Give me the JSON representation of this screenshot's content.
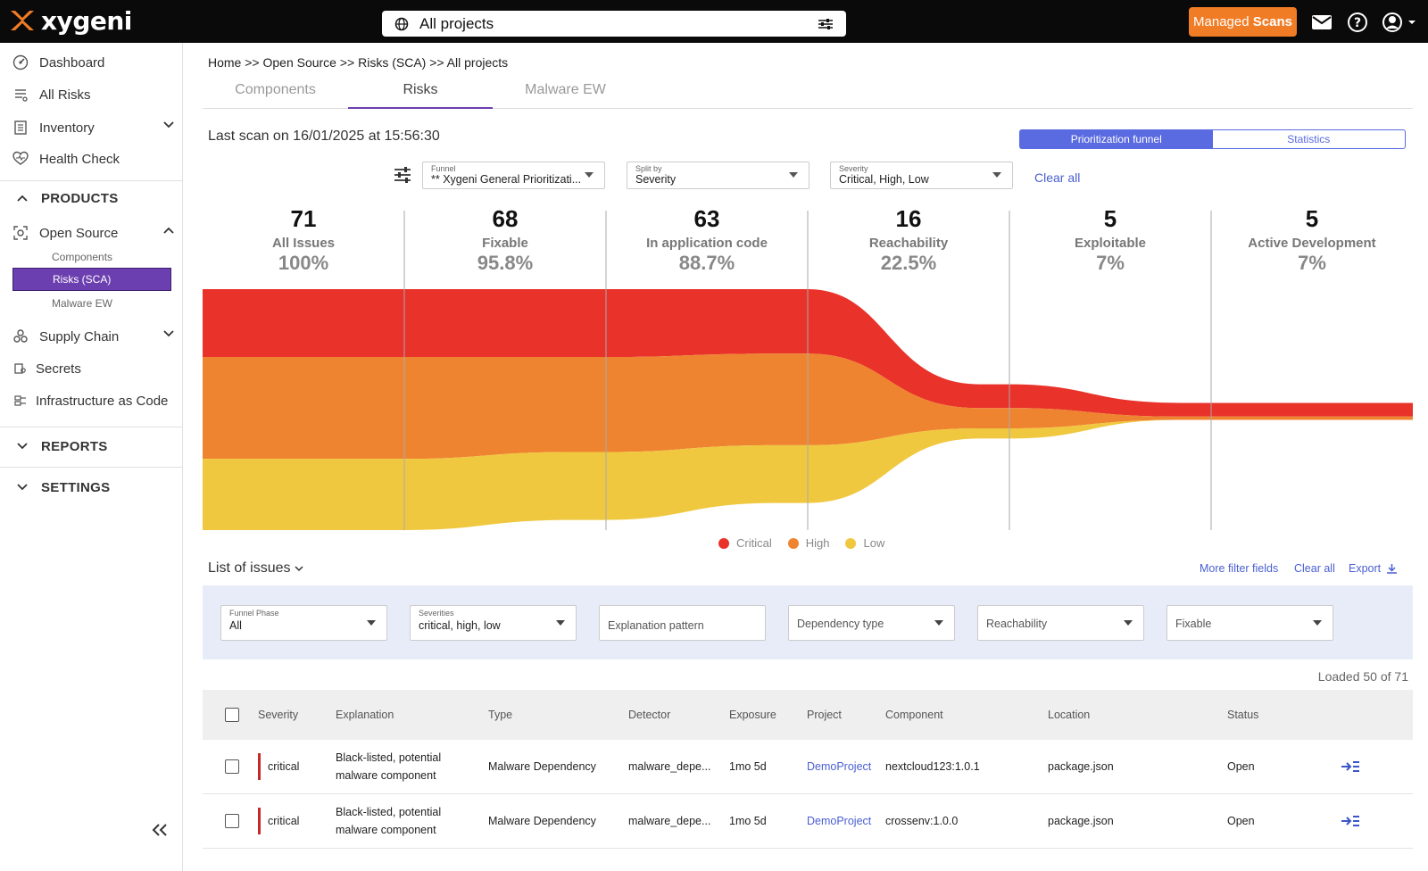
{
  "topbar": {
    "logo_text": "xygeni",
    "search_text": "All projects",
    "managed_btn_prefix": "Managed",
    "managed_btn_suffix": "Scans"
  },
  "sidebar": {
    "items": [
      {
        "label": "Dashboard",
        "icon": "dashboard-icon"
      },
      {
        "label": "All Risks",
        "icon": "risks-icon"
      },
      {
        "label": "Inventory",
        "icon": "inventory-icon"
      },
      {
        "label": "Health Check",
        "icon": "health-icon"
      }
    ],
    "products_header": "PRODUCTS",
    "open_source": "Open Source",
    "open_source_sub": [
      "Components",
      "Risks (SCA)",
      "Malware EW"
    ],
    "more_items": [
      {
        "label": "Supply Chain"
      },
      {
        "label": "Secrets"
      },
      {
        "label": "Infrastructure as Code"
      }
    ],
    "reports_header": "REPORTS",
    "settings_header": "SETTINGS"
  },
  "main": {
    "breadcrumb": "Home >> Open Source >> Risks (SCA) >> All projects",
    "tabs": [
      "Components",
      "Risks",
      "Malware EW"
    ],
    "last_scan": "Last scan on 16/01/2025 at 15:56:30",
    "view_toggle": [
      "Prioritization funnel",
      "Statistics"
    ],
    "filters": {
      "funnel_label": "Funnel",
      "funnel_value": "** Xygeni General Prioritizati...",
      "split_label": "Split by",
      "split_value": "Severity",
      "severity_label": "Severity",
      "severity_value": "Critical, High, Low",
      "clear_all": "Clear all"
    }
  },
  "chart_data": {
    "type": "area",
    "title": "",
    "stages": [
      {
        "count": "71",
        "name": "All Issues",
        "pct": "100%"
      },
      {
        "count": "68",
        "name": "Fixable",
        "pct": "95.8%"
      },
      {
        "count": "63",
        "name": "In application code",
        "pct": "88.7%"
      },
      {
        "count": "16",
        "name": "Reachability",
        "pct": "22.5%"
      },
      {
        "count": "5",
        "name": "Exploitable",
        "pct": "7%"
      },
      {
        "count": "5",
        "name": "Active Development",
        "pct": "7%"
      }
    ],
    "series": [
      {
        "name": "Critical",
        "color": "#e8322a",
        "values": [
          20,
          20,
          19,
          7,
          4,
          4
        ]
      },
      {
        "name": "High",
        "color": "#ef8430",
        "values": [
          30,
          28,
          27,
          6,
          1,
          1
        ]
      },
      {
        "name": "Low",
        "color": "#f0c840",
        "values": [
          21,
          20,
          17,
          3,
          0,
          0
        ]
      }
    ],
    "legend_position": "bottom"
  },
  "issues": {
    "title": "List of issues",
    "actions": [
      "More filter fields",
      "Clear all",
      "Export"
    ],
    "filter_fields": [
      {
        "label": "Funnel Phase",
        "value": "All"
      },
      {
        "label": "Severities",
        "value": "critical, high, low"
      },
      {
        "label": "",
        "value": "Explanation pattern"
      },
      {
        "label": "",
        "value": "Dependency type"
      },
      {
        "label": "",
        "value": "Reachability"
      },
      {
        "label": "",
        "value": "Fixable"
      }
    ],
    "loaded": "Loaded 50 of 71",
    "columns": [
      "Severity",
      "Explanation",
      "Type",
      "Detector",
      "Exposure",
      "Project",
      "Component",
      "Location",
      "Status"
    ],
    "rows": [
      {
        "severity": "critical",
        "expl1": "Black-listed, potential",
        "expl2": "malware component",
        "type": "Malware Dependency",
        "detector": "malware_depe...",
        "exposure": "1mo 5d",
        "project": "DemoProject",
        "component": "nextcloud123:1.0.1",
        "location": "package.json",
        "status": "Open"
      },
      {
        "severity": "critical",
        "expl1": "Black-listed, potential",
        "expl2": "malware component",
        "type": "Malware Dependency",
        "detector": "malware_depe...",
        "exposure": "1mo 5d",
        "project": "DemoProject",
        "component": "crossenv:1.0.0",
        "location": "package.json",
        "status": "Open"
      }
    ]
  }
}
